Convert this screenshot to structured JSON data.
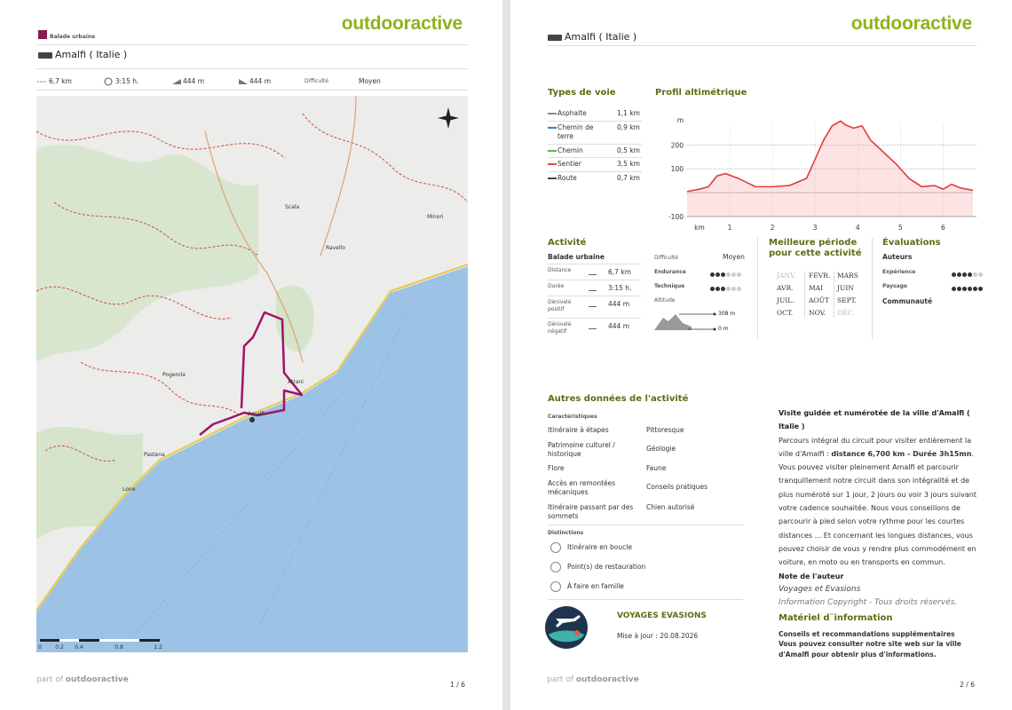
{
  "page1": {
    "logo": "outdooractive",
    "activity_type": "Balade urbaine",
    "title": "Amalfi ( Italie )",
    "stats": {
      "distance": "6,7 km",
      "duration": "3:15 h.",
      "ascent": "444 m",
      "descent": "444 m",
      "difficulty_label": "Difficulté",
      "difficulty": "Moyen"
    },
    "map_labels": [
      "Scala",
      "Ravello",
      "Minori",
      "Atrani",
      "Amalfi",
      "Pogerola",
      "Pastena",
      "Lone"
    ],
    "scale_labels": [
      "0",
      "0.2",
      "0.4",
      "0.8",
      "1.2"
    ],
    "footer_prefix": "part of",
    "footer_brand": "outdooractive",
    "page_number": "1 / 6"
  },
  "page2": {
    "logo": "outdooractive",
    "title": "Amalfi ( Italie )",
    "way_types": {
      "title": "Types de voie",
      "rows": [
        {
          "name": "Asphalte",
          "length": "1,1 km",
          "color": "#8a8a8a"
        },
        {
          "name": "Chemin de terre",
          "length": "0,9 km",
          "color": "#3d7fd0"
        },
        {
          "name": "Chemin",
          "length": "0,5 km",
          "color": "#5cb840"
        },
        {
          "name": "Sentier",
          "length": "3,5 km",
          "color": "#e8474a"
        },
        {
          "name": "Route",
          "length": "0,7 km",
          "color": "#444444"
        }
      ]
    },
    "profile": {
      "title": "Profil altimétrique",
      "y_unit": "m",
      "x_unit": "km",
      "yticks": [
        200,
        100,
        -100
      ],
      "xticks": [
        1,
        2,
        3,
        4,
        5,
        6
      ],
      "ylim": [
        -100,
        320
      ],
      "xlim": [
        0,
        6.7
      ],
      "km": [
        0,
        0.3,
        0.5,
        0.7,
        0.9,
        1.2,
        1.6,
        2.0,
        2.4,
        2.8,
        3.0,
        3.2,
        3.4,
        3.6,
        3.7,
        3.9,
        4.1,
        4.3,
        4.6,
        4.9,
        5.2,
        5.5,
        5.8,
        6.0,
        6.2,
        6.4,
        6.7
      ],
      "m": [
        5,
        15,
        25,
        70,
        80,
        60,
        25,
        25,
        30,
        60,
        140,
        220,
        280,
        300,
        285,
        270,
        280,
        220,
        170,
        120,
        60,
        25,
        30,
        15,
        35,
        20,
        10
      ],
      "line_color": "#e23c3c",
      "fill_color": "#fde3e3"
    },
    "activity": {
      "title": "Activité",
      "type": "Balade urbaine",
      "rows": [
        [
          "Distance",
          "6,7 km"
        ],
        [
          "Durée",
          "3:15 h."
        ],
        [
          "Dénivelé positif",
          "444 m"
        ],
        [
          "Dénivelé négatif",
          "444 m"
        ]
      ],
      "difficulty_label": "Difficulté",
      "difficulty": "Moyen",
      "ratings": [
        {
          "label": "Endurance",
          "value": 3
        },
        {
          "label": "Technique",
          "value": 3
        }
      ],
      "dots_total": 6,
      "altitude_label": "Altitude",
      "alt_max": "308 m",
      "alt_min": "0 m"
    },
    "season": {
      "title": "Meilleure période pour cette activité",
      "months": [
        {
          "name": "JANV.",
          "recommended": false
        },
        {
          "name": "FÉVR.",
          "recommended": true
        },
        {
          "name": "MARS",
          "recommended": true
        },
        {
          "name": "AVR.",
          "recommended": true
        },
        {
          "name": "MAI",
          "recommended": true
        },
        {
          "name": "JUIN",
          "recommended": true
        },
        {
          "name": "JUIL.",
          "recommended": true
        },
        {
          "name": "AOÛT",
          "recommended": true
        },
        {
          "name": "SEPT.",
          "recommended": true
        },
        {
          "name": "OCT.",
          "recommended": true
        },
        {
          "name": "NOV.",
          "recommended": true
        },
        {
          "name": "DÉC.",
          "recommended": false
        }
      ]
    },
    "evaluations": {
      "title": "Évaluations",
      "authors": "Auteurs",
      "items": [
        {
          "label": "Expérience",
          "value": 4
        },
        {
          "label": "Paysage",
          "value": 6
        }
      ],
      "dots_total": 6,
      "community": "Communauté"
    },
    "other": {
      "title": "Autres données de l'activité",
      "characteristics_title": "Caractéristiques",
      "characteristics": [
        "Itinéraire à étapes",
        "Pittoresque",
        "Patrimoine culturel / historique",
        "Géologie",
        "Flore",
        "Faune",
        "Accès en remontées mécaniques",
        "Conseils pratiques",
        "Itinéraire passant par des sommets",
        "Chien autorisé"
      ],
      "distinctions_title": "Distinctions",
      "distinctions": [
        "Itinéraire en boucle",
        "Point(s) de restauration",
        "À faire en famille"
      ]
    },
    "author_block": {
      "name": "VOYAGES EVASIONS",
      "updated": "Mise à jour : 20.08.2026"
    },
    "description": {
      "heading": "Visite guidée et numérotée de la ville d'Amalfi ( Italie )",
      "text_before": "Parcours intégral du circuit pour visiter entièrement la ville d'Amalfi : ",
      "text_bold": "distance 6,700 km - Durée 3h15mn",
      "text_after": ". Vous pouvez visiter pleinement Amalfi et parcourir tranquillement notre circuit dans son intégralité et de plus numéroté sur 1 jour, 2 jours ou voir 3 jours suivant votre cadence souhaitée. Nous vous conseillons de parcourir à pied selon votre rythme pour les courtes distances ... Et concernant les longues distances, vous pouvez choisir de vous y rendre plus commodément en voiture, en moto ou en transports en commun.",
      "note_title": "Note de l'auteur",
      "author": "Voyages et Evasions",
      "copyright": "Information Copyright - Tous droits réservés.",
      "material_title": "Matériel d¨information",
      "tips_title": "Conseils et recommandations supplémentaires",
      "tips": "Vous pouvez consulter notre site web sur la ville d'Amalfi pour obtenir plus d'informations."
    },
    "footer_prefix": "part of",
    "footer_brand": "outdooractive",
    "page_number": "2 / 6"
  }
}
